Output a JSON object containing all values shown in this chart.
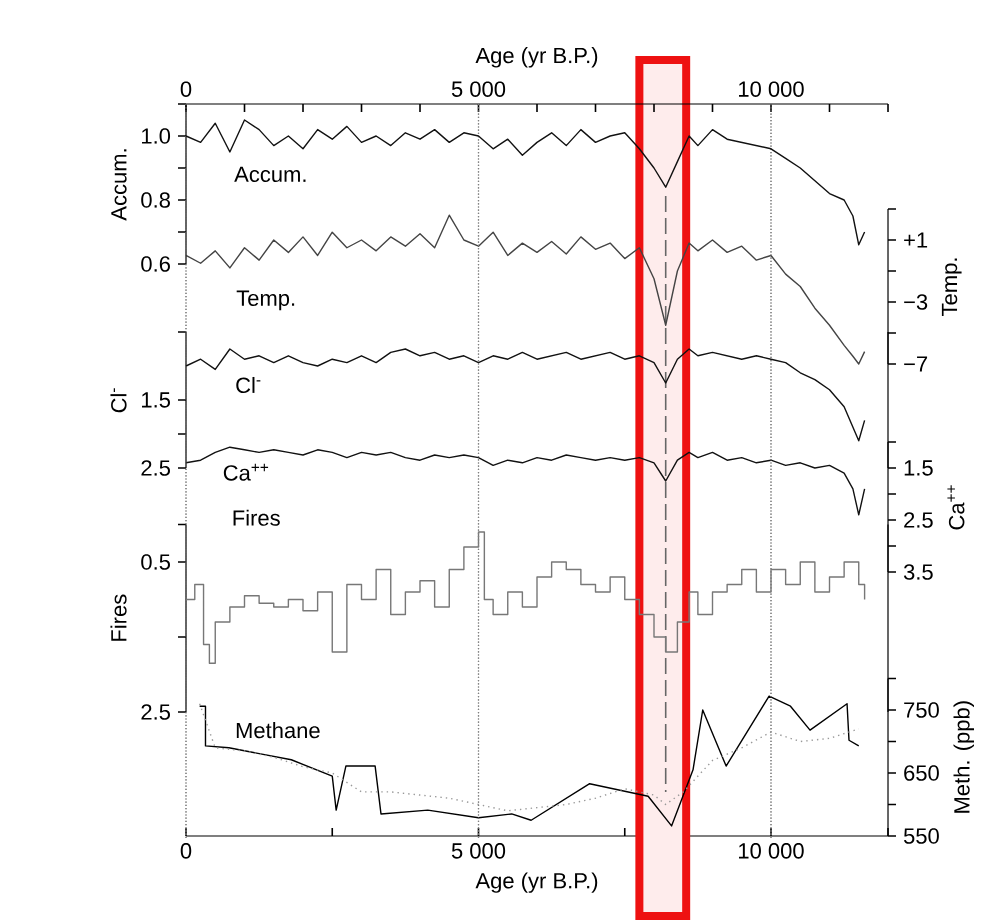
{
  "chart_data": [
    {
      "type": "line",
      "xlabel": "Age (yr B.P.)",
      "xlim": [
        0,
        12000
      ],
      "xticks": [
        {
          "value": 0,
          "label": "0"
        },
        {
          "value": 1000,
          "label": null
        },
        {
          "value": 2000,
          "label": null
        },
        {
          "value": 3000,
          "label": null
        },
        {
          "value": 4000,
          "label": null
        },
        {
          "value": 5000,
          "label": "5 000"
        },
        {
          "value": 6000,
          "label": null
        },
        {
          "value": 7000,
          "label": null
        },
        {
          "value": 8000,
          "label": null
        },
        {
          "value": 9000,
          "label": null
        },
        {
          "value": 10000,
          "label": "10 000"
        },
        {
          "value": 11000,
          "label": null
        },
        {
          "value": 12000,
          "label": null
        }
      ],
      "ylabel": "Accum.",
      "ylim": [
        0.6,
        1.1
      ],
      "yticks": [
        {
          "value": 1.1,
          "label": null
        },
        {
          "value": 1,
          "label": "1.0"
        },
        {
          "value": 0.9,
          "label": null
        },
        0.8,
        {
          "value": 0.7,
          "label": null
        },
        0.6
      ],
      "grid": "x",
      "series": [
        {
          "name": "Accum.",
          "color": "#111111",
          "x": [
            0,
            250,
            500,
            750,
            1000,
            1250,
            1500,
            1750,
            2000,
            2250,
            2500,
            2750,
            3000,
            3250,
            3500,
            3750,
            4000,
            4250,
            4500,
            4750,
            5000,
            5250,
            5500,
            5750,
            6000,
            6250,
            6500,
            6750,
            7000,
            7250,
            7500,
            7750,
            8000,
            8200,
            8400,
            8600,
            8750,
            9000,
            9250,
            9500,
            9750,
            10000,
            10250,
            10500,
            10750,
            11000,
            11250,
            11400,
            11500,
            11600
          ],
          "values": [
            1.0,
            0.98,
            1.04,
            0.95,
            1.05,
            1.02,
            0.97,
            1.0,
            0.96,
            1.02,
            0.99,
            1.03,
            0.98,
            1.0,
            0.97,
            1.01,
            0.99,
            1.02,
            0.98,
            1.01,
            1.0,
            0.96,
            0.99,
            0.94,
            0.98,
            1.01,
            0.97,
            1.02,
            0.98,
            1.0,
            1.01,
            0.96,
            0.9,
            0.84,
            0.92,
            1.0,
            0.97,
            1.02,
            0.99,
            0.98,
            0.97,
            0.96,
            0.93,
            0.9,
            0.86,
            0.82,
            0.8,
            0.75,
            0.66,
            0.7
          ]
        }
      ]
    },
    {
      "type": "line",
      "xlim": [
        0,
        12000
      ],
      "tick_labels": "y",
      "ylabel": "Temp.",
      "ylim": [
        -7,
        3
      ],
      "yticks": [
        {
          "value": 3,
          "label": null
        },
        {
          "value": 1,
          "label": "+1"
        },
        {
          "value": -1,
          "label": null
        },
        {
          "value": -3,
          "label": "−3"
        },
        {
          "value": -5,
          "label": null
        },
        {
          "value": -7,
          "label": "−7"
        }
      ],
      "series": [
        {
          "name": "Temp.",
          "color": "#444444",
          "x": [
            0,
            250,
            500,
            750,
            1000,
            1250,
            1500,
            1750,
            2000,
            2250,
            2500,
            2750,
            3000,
            3250,
            3500,
            3750,
            4000,
            4250,
            4500,
            4750,
            5000,
            5250,
            5500,
            5750,
            6000,
            6250,
            6500,
            6750,
            7000,
            7250,
            7500,
            7750,
            8000,
            8200,
            8400,
            8600,
            8750,
            9000,
            9250,
            9500,
            9750,
            10000,
            10250,
            10500,
            10750,
            11000,
            11250,
            11400,
            11500,
            11600
          ],
          "values": [
            0.0,
            -0.5,
            0.3,
            -0.8,
            0.5,
            -0.3,
            1.0,
            0.2,
            1.2,
            0.0,
            1.5,
            0.5,
            1.0,
            0.3,
            1.2,
            0.6,
            1.4,
            0.5,
            2.6,
            1.0,
            0.6,
            1.5,
            0.0,
            0.8,
            0.2,
            0.9,
            0.1,
            1.2,
            0.4,
            0.8,
            -0.2,
            0.5,
            -1.5,
            -4.5,
            -1.0,
            0.8,
            0.3,
            1.0,
            0.2,
            0.6,
            -0.3,
            0.0,
            -1.2,
            -2.0,
            -3.4,
            -4.5,
            -5.8,
            -6.5,
            -7.0,
            -6.2
          ]
        }
      ]
    },
    {
      "type": "line",
      "xlim": [
        0,
        12000
      ],
      "tick_labels": "y",
      "ylabel": "Cl$^{-}$",
      "ylim": [
        2.5,
        0.5
      ],
      "yticks": [
        {
          "value": 0.5,
          "label": null
        },
        1.5,
        {
          "value": 2,
          "label": null
        },
        2.5
      ],
      "series": [
        {
          "name": "Cl$^{-}$",
          "color": "#111111",
          "x": [
            0,
            250,
            500,
            750,
            1000,
            1250,
            1500,
            1750,
            2000,
            2250,
            2500,
            2750,
            3000,
            3250,
            3500,
            3750,
            4000,
            4250,
            4500,
            4750,
            5000,
            5250,
            5500,
            5750,
            6000,
            6250,
            6500,
            6750,
            7000,
            7250,
            7500,
            7750,
            8000,
            8200,
            8400,
            8600,
            8750,
            9000,
            9250,
            9500,
            9750,
            10000,
            10250,
            10500,
            10750,
            11000,
            11250,
            11400,
            11500,
            11600
          ],
          "values": [
            1.0,
            0.9,
            1.05,
            0.75,
            0.9,
            0.85,
            0.95,
            0.85,
            0.95,
            1.0,
            0.9,
            0.95,
            0.85,
            0.95,
            0.8,
            0.75,
            0.85,
            0.8,
            0.9,
            0.85,
            0.95,
            0.85,
            0.9,
            0.8,
            0.9,
            0.85,
            0.8,
            0.9,
            0.85,
            0.8,
            0.9,
            0.85,
            0.95,
            1.25,
            0.9,
            0.75,
            0.85,
            0.8,
            0.85,
            0.9,
            0.85,
            0.9,
            0.95,
            1.1,
            1.2,
            1.35,
            1.6,
            1.9,
            2.1,
            1.8
          ]
        }
      ]
    },
    {
      "type": "line",
      "xlim": [
        0,
        12000
      ],
      "tick_labels": "y",
      "ylabel": "Ca$^{++}$",
      "ylim": [
        3.5,
        1.0
      ],
      "yticks": [
        {
          "value": 1,
          "label": null
        },
        1.5,
        {
          "value": 2,
          "label": null
        },
        2.5,
        {
          "value": 3,
          "label": null
        },
        3.5
      ],
      "series": [
        {
          "name": "Ca$^{++}$",
          "color": "#111111",
          "x": [
            0,
            250,
            500,
            750,
            1000,
            1250,
            1500,
            1750,
            2000,
            2250,
            2500,
            2750,
            3000,
            3250,
            3500,
            3750,
            4000,
            4250,
            4500,
            4750,
            5000,
            5250,
            5500,
            5750,
            6000,
            6250,
            6500,
            6750,
            7000,
            7250,
            7500,
            7750,
            8000,
            8200,
            8400,
            8600,
            8750,
            9000,
            9250,
            9500,
            9750,
            10000,
            10250,
            10500,
            10750,
            11000,
            11250,
            11400,
            11500,
            11600
          ],
          "values": [
            1.4,
            1.35,
            1.2,
            1.1,
            1.15,
            1.2,
            1.15,
            1.2,
            1.25,
            1.15,
            1.2,
            1.3,
            1.2,
            1.25,
            1.2,
            1.3,
            1.35,
            1.25,
            1.3,
            1.25,
            1.3,
            1.45,
            1.35,
            1.4,
            1.3,
            1.35,
            1.25,
            1.3,
            1.35,
            1.3,
            1.35,
            1.3,
            1.4,
            1.75,
            1.35,
            1.2,
            1.3,
            1.2,
            1.35,
            1.3,
            1.4,
            1.35,
            1.45,
            1.4,
            1.5,
            1.45,
            1.6,
            1.9,
            2.4,
            1.9
          ]
        }
      ]
    },
    {
      "type": "step",
      "xlim": [
        0,
        12000
      ],
      "tick_labels": "y",
      "ylabel": "Fires",
      "ylim": [
        2.5,
        0
      ],
      "yticks": [
        {
          "value": 0,
          "label": null
        },
        0.5,
        {
          "value": 1.5,
          "label": null
        },
        2.5
      ],
      "series": [
        {
          "name": "Fires",
          "color": "#777777",
          "x": [
            0,
            150,
            300,
            400,
            500,
            750,
            1000,
            1250,
            1500,
            1750,
            2000,
            2250,
            2500,
            2750,
            3000,
            3250,
            3500,
            3750,
            4000,
            4250,
            4500,
            4750,
            5000,
            5100,
            5250,
            5500,
            5750,
            6000,
            6250,
            6500,
            6750,
            7000,
            7250,
            7500,
            7750,
            8000,
            8200,
            8400,
            8600,
            8750,
            9000,
            9250,
            9500,
            9750,
            10000,
            10250,
            10500,
            10750,
            11000,
            11250,
            11500,
            11600
          ],
          "values": [
            1.0,
            0.8,
            1.6,
            1.85,
            1.3,
            1.1,
            0.95,
            1.05,
            1.1,
            1.0,
            1.15,
            0.9,
            1.7,
            0.8,
            1.0,
            0.6,
            1.2,
            0.9,
            0.75,
            1.1,
            0.6,
            0.3,
            0.1,
            1.0,
            1.2,
            0.9,
            1.1,
            0.7,
            0.5,
            0.6,
            0.8,
            0.9,
            0.7,
            1.0,
            1.2,
            1.5,
            1.7,
            1.3,
            0.9,
            1.2,
            0.9,
            0.8,
            0.6,
            0.9,
            0.6,
            0.8,
            0.5,
            0.9,
            0.7,
            0.5,
            0.8,
            1.0
          ]
        }
      ]
    },
    {
      "type": "line",
      "xlabel": "Age (yr B.P.)",
      "xlim": [
        0,
        12000
      ],
      "xticks": [
        {
          "value": 0,
          "label": "0"
        },
        {
          "value": 2500,
          "label": null
        },
        {
          "value": 5000,
          "label": "5 000"
        },
        {
          "value": 7500,
          "label": null
        },
        {
          "value": 10000,
          "label": "10 000"
        },
        {
          "value": 12000,
          "label": null
        }
      ],
      "ylabel": "Meth. (ppb)",
      "ylim": [
        550,
        800
      ],
      "yticks": [
        550,
        {
          "value": 600,
          "label": null
        },
        650,
        {
          "value": 700,
          "label": null
        },
        750,
        {
          "value": 800,
          "label": null
        }
      ],
      "grid": "x",
      "ref_lines": [
        {
          "axis": "x",
          "value": 8200,
          "color": "#666666",
          "line_style": "dashed"
        }
      ],
      "bands": [
        {
          "axis": "x",
          "from": 7750,
          "to": 8550,
          "color": "#ee1111"
        }
      ],
      "series": [
        {
          "name": "Methane",
          "color": "#000000",
          "x": [
            233,
            333,
            333,
            733,
            1800,
            2500,
            2567,
            2733,
            3233,
            3333,
            4133,
            5000,
            5567,
            5900,
            6900,
            7900,
            8300,
            8667,
            8833,
            9233,
            9967,
            10333,
            10667,
            11300,
            11333,
            11500
          ],
          "values": [
            756,
            756,
            693,
            690,
            671,
            645,
            591,
            661,
            661,
            585,
            591,
            579,
            585,
            575,
            633,
            613,
            566,
            655,
            750,
            661,
            772,
            756,
            718,
            760,
            702,
            693
          ]
        },
        {
          "color": "#999999",
          "line_style": "dotted",
          "x": [
            233,
            500,
            1000,
            1500,
            2000,
            2500,
            3000,
            3500,
            4000,
            4500,
            5000,
            5500,
            6000,
            6500,
            7000,
            7500,
            8000,
            8200,
            8500,
            9000,
            9500,
            10000,
            10500,
            11000,
            11500
          ],
          "values": [
            760,
            690,
            685,
            675,
            660,
            650,
            620,
            620,
            615,
            610,
            600,
            590,
            595,
            600,
            610,
            625,
            615,
            600,
            620,
            670,
            690,
            715,
            700,
            705,
            720
          ]
        }
      ]
    }
  ]
}
